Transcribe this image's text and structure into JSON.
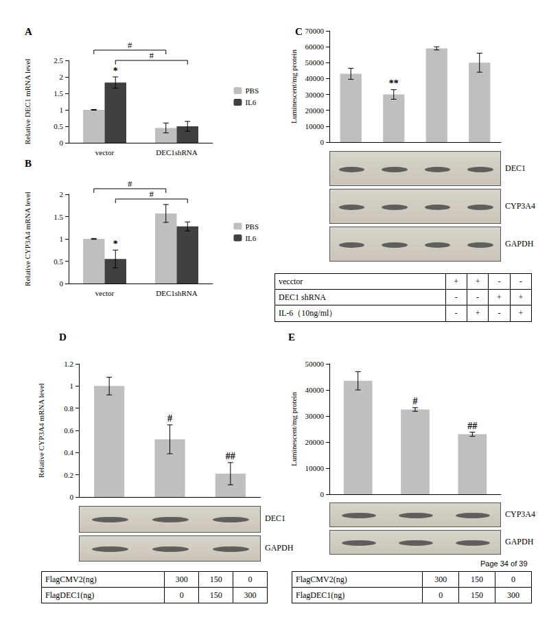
{
  "chart_data": [
    {
      "type": "bar",
      "title": "A",
      "ylabel": "Relative DEC1 mRNA level",
      "categories": [
        "vector",
        "DEC1shRNA"
      ],
      "series": [
        {
          "name": "PBS",
          "color": "#bfbfbf",
          "values": [
            1.0,
            0.45
          ],
          "errors": [
            0.01,
            0.15
          ]
        },
        {
          "name": "IL6",
          "color": "#404040",
          "values": [
            1.83,
            0.5
          ],
          "errors": [
            0.17,
            0.15
          ]
        }
      ],
      "ylim": [
        0,
        2.5
      ],
      "yticks": [
        0,
        0.5,
        1,
        1.5,
        2,
        2.5
      ],
      "grid": false,
      "legend": "right",
      "annotations": [
        {
          "text": "*",
          "at": [
            0,
            1
          ]
        }
      ],
      "brackets": [
        {
          "text": "#",
          "from": [
            0,
            0
          ],
          "to": [
            1,
            0
          ]
        },
        {
          "text": "#",
          "from": [
            0,
            1
          ],
          "to": [
            1,
            1
          ]
        }
      ]
    },
    {
      "type": "bar",
      "title": "B",
      "ylabel": "Relative CYP3A4 mRNA level",
      "categories": [
        "vector",
        "DEC1shRNA"
      ],
      "series": [
        {
          "name": "PBS",
          "color": "#bfbfbf",
          "values": [
            1.0,
            1.57
          ],
          "errors": [
            0.01,
            0.2
          ]
        },
        {
          "name": "IL6",
          "color": "#404040",
          "values": [
            0.55,
            1.28
          ],
          "errors": [
            0.2,
            0.1
          ]
        }
      ],
      "ylim": [
        0,
        2
      ],
      "yticks": [
        0,
        0.5,
        1,
        1.5,
        2
      ],
      "grid": false,
      "legend": "right",
      "annotations": [
        {
          "text": "*",
          "at": [
            0,
            1
          ]
        }
      ],
      "brackets": [
        {
          "text": "#",
          "from": [
            0,
            0
          ],
          "to": [
            1,
            0
          ]
        },
        {
          "text": "#",
          "from": [
            0,
            1
          ],
          "to": [
            1,
            1
          ]
        }
      ]
    },
    {
      "type": "bar",
      "title": "C",
      "ylabel": "Luminescent/mg protein",
      "categories": [
        null,
        null,
        null,
        null
      ],
      "values": [
        43000,
        30000,
        59000,
        50000
      ],
      "errors": [
        3500,
        3000,
        1000,
        6000
      ],
      "color": "#bfbfbf",
      "ylim": [
        0,
        70000
      ],
      "yticks": [
        0,
        10000,
        20000,
        30000,
        40000,
        50000,
        60000,
        70000
      ],
      "grid": false,
      "annotations": [
        {
          "text": "**",
          "at": [
            1,
            0
          ]
        }
      ],
      "blot": [
        "DEC1",
        "CYP3A4",
        "GAPDH"
      ],
      "table": [
        [
          "vecctor",
          "+",
          "+",
          "-",
          "-"
        ],
        [
          "DEC1 shRNA",
          "-",
          "-",
          "+",
          "+"
        ],
        [
          "IL-6（10ng/ml）",
          "-",
          "+",
          "-",
          "+"
        ]
      ]
    },
    {
      "type": "bar",
      "title": "D",
      "ylabel": "Relative CYP3A4 mRNA level",
      "categories": [
        null,
        null,
        null
      ],
      "values": [
        1.0,
        0.52,
        0.21
      ],
      "errors": [
        0.08,
        0.13,
        0.1
      ],
      "color": "#bfbfbf",
      "ylim": [
        0,
        1.2
      ],
      "yticks": [
        0,
        0.2,
        0.4,
        0.6,
        0.8,
        1,
        1.2
      ],
      "grid": false,
      "annotations": [
        {
          "text": "#",
          "at": [
            1,
            0
          ]
        },
        {
          "text": "##",
          "at": [
            2,
            0
          ]
        }
      ],
      "blot": [
        "DEC1",
        "GAPDH"
      ],
      "table": [
        [
          "FlagCMV2(ng)",
          "300",
          "150",
          "0"
        ],
        [
          "FlagDEC1(ng)",
          "0",
          "150",
          "300"
        ]
      ]
    },
    {
      "type": "bar",
      "title": "E",
      "ylabel": "Luminescent/mg protein",
      "categories": [
        null,
        null,
        null
      ],
      "values": [
        43500,
        32500,
        23000
      ],
      "errors": [
        3500,
        700,
        800
      ],
      "color": "#bfbfbf",
      "ylim": [
        0,
        50000
      ],
      "yticks": [
        0,
        10000,
        20000,
        30000,
        40000,
        50000
      ],
      "grid": false,
      "annotations": [
        {
          "text": "#",
          "at": [
            1,
            0
          ]
        },
        {
          "text": "##",
          "at": [
            2,
            0
          ]
        }
      ],
      "blot": [
        "CYP3A4",
        "GAPDH"
      ],
      "table": [
        [
          "FlagCMV2(ng)",
          "300",
          "150",
          "0"
        ],
        [
          "FlagDEC1(ng)",
          "0",
          "150",
          "300"
        ]
      ]
    }
  ],
  "page_footer": "Page 34 of 39"
}
